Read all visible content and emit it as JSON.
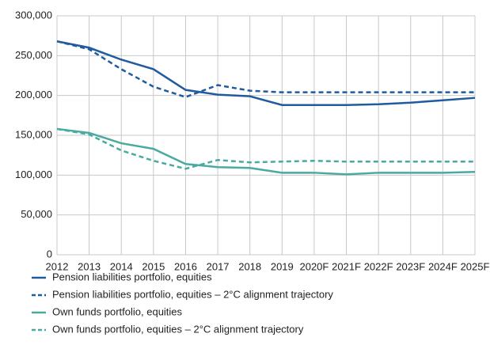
{
  "chart_data": {
    "type": "line",
    "categories": [
      "2012",
      "2013",
      "2014",
      "2015",
      "2016",
      "2017",
      "2018",
      "2019",
      "2020F",
      "2021F",
      "2022F",
      "2023F",
      "2024F",
      "2025F"
    ],
    "series": [
      {
        "name": "Pension liabilities portfolio, equities",
        "color": "#1f5b9e",
        "dash": false,
        "values": [
          268000,
          260000,
          245000,
          233000,
          207000,
          201000,
          199000,
          188000,
          188000,
          188000,
          189000,
          191000,
          194000,
          197000
        ]
      },
      {
        "name": "Pension liabilities portfolio, equities – 2°C alignment trajectory",
        "color": "#1f5b9e",
        "dash": true,
        "values": [
          268000,
          258000,
          233000,
          211000,
          198000,
          213000,
          206000,
          204000,
          204000,
          204000,
          204000,
          204000,
          204000,
          204000
        ]
      },
      {
        "name": "Own funds portfolio, equities",
        "color": "#4aaa9f",
        "dash": false,
        "values": [
          158000,
          153000,
          140000,
          133000,
          114000,
          110000,
          109000,
          103000,
          103000,
          101000,
          103000,
          103000,
          103000,
          104000
        ]
      },
      {
        "name": "Own funds portfolio, equities – 2°C alignment trajectory",
        "color": "#4aaa9f",
        "dash": true,
        "values": [
          158000,
          151000,
          131000,
          118000,
          108000,
          119000,
          116000,
          117000,
          118000,
          117000,
          117000,
          117000,
          117000,
          117000
        ]
      }
    ],
    "ylim": [
      0,
      300000
    ],
    "yticks": [
      0,
      {
        "value": 50000,
        "label": "50,000"
      },
      {
        "value": 100000,
        "label": "100,000"
      },
      {
        "value": 150000,
        "label": "150,000"
      },
      {
        "value": 200000,
        "label": "200,000"
      },
      {
        "value": 250000,
        "label": "250,000"
      },
      {
        "value": 300000,
        "label": "300,000"
      }
    ],
    "grid": true
  }
}
